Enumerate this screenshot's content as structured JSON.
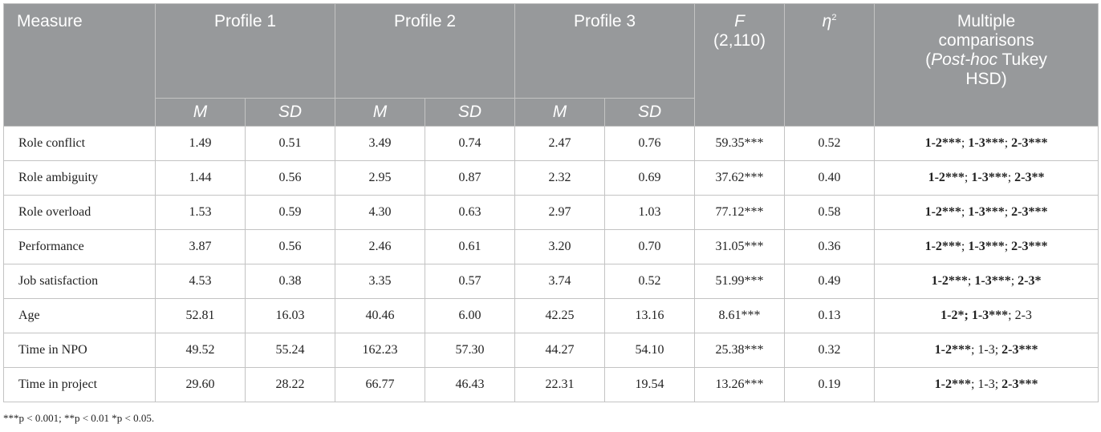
{
  "header": {
    "measure": "Measure",
    "profiles": [
      "Profile 1",
      "Profile 2",
      "Profile 3"
    ],
    "f_symbol": "F",
    "f_df": "(2,110)",
    "eta_symbol": "η",
    "eta_sup": "2",
    "mc_line1": "Multiple",
    "mc_line2": "comparisons",
    "mc_open": "(",
    "mc_posthoc": "Post-hoc",
    "mc_tukey": " Tukey",
    "mc_line4": "HSD)",
    "sub_m": "M",
    "sub_sd": "SD"
  },
  "rows": [
    {
      "label": "Role conflict",
      "p1m": "1.49",
      "p1sd": "0.51",
      "p2m": "3.49",
      "p2sd": "0.74",
      "p3m": "2.47",
      "p3sd": "0.76",
      "f": "59.35***",
      "eta": "0.52",
      "mc": [
        {
          "t": "1-2***",
          "b": true
        },
        {
          "t": "; ",
          "b": false
        },
        {
          "t": "1-3***",
          "b": true
        },
        {
          "t": "; ",
          "b": false
        },
        {
          "t": "2-3***",
          "b": true
        }
      ]
    },
    {
      "label": "Role ambiguity",
      "p1m": "1.44",
      "p1sd": "0.56",
      "p2m": "2.95",
      "p2sd": "0.87",
      "p3m": "2.32",
      "p3sd": "0.69",
      "f": "37.62***",
      "eta": "0.40",
      "mc": [
        {
          "t": "1-2***",
          "b": true
        },
        {
          "t": "; ",
          "b": false
        },
        {
          "t": "1-3***",
          "b": true
        },
        {
          "t": "; ",
          "b": false
        },
        {
          "t": "2-3**",
          "b": true
        }
      ]
    },
    {
      "label": "Role overload",
      "p1m": "1.53",
      "p1sd": "0.59",
      "p2m": "4.30",
      "p2sd": "0.63",
      "p3m": "2.97",
      "p3sd": "1.03",
      "f": "77.12***",
      "eta": "0.58",
      "mc": [
        {
          "t": "1-2***",
          "b": true
        },
        {
          "t": "; ",
          "b": false
        },
        {
          "t": "1-3***",
          "b": true
        },
        {
          "t": "; ",
          "b": false
        },
        {
          "t": "2-3***",
          "b": true
        }
      ]
    },
    {
      "label": "Performance",
      "p1m": "3.87",
      "p1sd": "0.56",
      "p2m": "2.46",
      "p2sd": "0.61",
      "p3m": "3.20",
      "p3sd": "0.70",
      "f": "31.05***",
      "eta": "0.36",
      "mc": [
        {
          "t": "1-2***",
          "b": true
        },
        {
          "t": "; ",
          "b": false
        },
        {
          "t": "1-3***",
          "b": true
        },
        {
          "t": "; ",
          "b": false
        },
        {
          "t": "2-3***",
          "b": true
        }
      ]
    },
    {
      "label": "Job satisfaction",
      "p1m": "4.53",
      "p1sd": "0.38",
      "p2m": "3.35",
      "p2sd": "0.57",
      "p3m": "3.74",
      "p3sd": "0.52",
      "f": "51.99***",
      "eta": "0.49",
      "mc": [
        {
          "t": "1-2***",
          "b": true
        },
        {
          "t": "; ",
          "b": false
        },
        {
          "t": "1-3***",
          "b": true
        },
        {
          "t": "; ",
          "b": false
        },
        {
          "t": "2-3*",
          "b": true
        }
      ]
    },
    {
      "label": "Age",
      "p1m": "52.81",
      "p1sd": "16.03",
      "p2m": "40.46",
      "p2sd": "6.00",
      "p3m": "42.25",
      "p3sd": "13.16",
      "f": "8.61***",
      "eta": "0.13",
      "mc": [
        {
          "t": "1-2*",
          "b": true
        },
        {
          "t": "; ",
          "b": true
        },
        {
          "t": "1-3***",
          "b": true
        },
        {
          "t": "; 2-3",
          "b": false
        }
      ]
    },
    {
      "label": "Time in NPO",
      "p1m": "49.52",
      "p1sd": "55.24",
      "p2m": "162.23",
      "p2sd": "57.30",
      "p3m": "44.27",
      "p3sd": "54.10",
      "f": "25.38***",
      "eta": "0.32",
      "mc": [
        {
          "t": "1-2***",
          "b": true
        },
        {
          "t": "; 1-3; ",
          "b": false
        },
        {
          "t": "2-3***",
          "b": true
        }
      ]
    },
    {
      "label": "Time in project",
      "p1m": "29.60",
      "p1sd": "28.22",
      "p2m": "66.77",
      "p2sd": "46.43",
      "p3m": "22.31",
      "p3sd": "19.54",
      "f": "13.26***",
      "eta": "0.19",
      "mc": [
        {
          "t": "1-2***",
          "b": true
        },
        {
          "t": "; 1-3; ",
          "b": false
        },
        {
          "t": "2-3***",
          "b": true
        }
      ]
    }
  ],
  "footnote": "***p < 0.001; **p < 0.01 *p < 0.05."
}
